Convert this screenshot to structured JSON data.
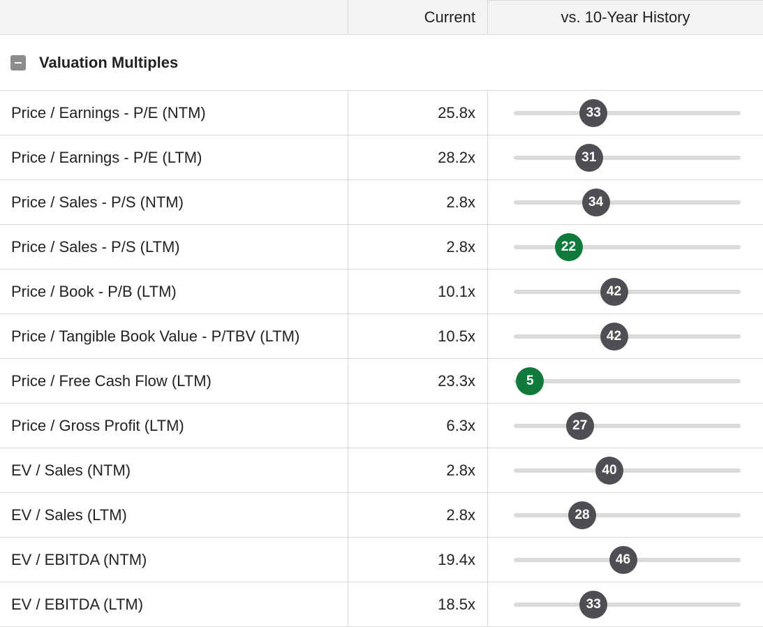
{
  "header": {
    "current_label": "Current",
    "history_label": "vs. 10-Year History"
  },
  "section": {
    "title": "Valuation Multiples",
    "toggle_icon": "minus-collapse-icon"
  },
  "colors": {
    "neutral_dot": "#4d4f53",
    "low_dot": "#0f7a3a",
    "track": "#d9d9d9"
  },
  "rows": [
    {
      "label": "Price / Earnings - P/E (NTM)",
      "current": "25.8x",
      "percentile": "33",
      "status": "neutral"
    },
    {
      "label": "Price / Earnings - P/E (LTM)",
      "current": "28.2x",
      "percentile": "31",
      "status": "neutral"
    },
    {
      "label": "Price / Sales - P/S (NTM)",
      "current": "2.8x",
      "percentile": "34",
      "status": "neutral"
    },
    {
      "label": "Price / Sales - P/S (LTM)",
      "current": "2.8x",
      "percentile": "22",
      "status": "low"
    },
    {
      "label": "Price / Book - P/B (LTM)",
      "current": "10.1x",
      "percentile": "42",
      "status": "neutral"
    },
    {
      "label": "Price / Tangible Book Value - P/TBV (LTM)",
      "current": "10.5x",
      "percentile": "42",
      "status": "neutral"
    },
    {
      "label": "Price / Free Cash Flow (LTM)",
      "current": "23.3x",
      "percentile": "5",
      "status": "low"
    },
    {
      "label": "Price / Gross Profit (LTM)",
      "current": "6.3x",
      "percentile": "27",
      "status": "neutral"
    },
    {
      "label": "EV / Sales (NTM)",
      "current": "2.8x",
      "percentile": "40",
      "status": "neutral"
    },
    {
      "label": "EV / Sales (LTM)",
      "current": "2.8x",
      "percentile": "28",
      "status": "neutral"
    },
    {
      "label": "EV / EBITDA (NTM)",
      "current": "19.4x",
      "percentile": "46",
      "status": "neutral"
    },
    {
      "label": "EV / EBITDA (LTM)",
      "current": "18.5x",
      "percentile": "33",
      "status": "neutral"
    }
  ]
}
